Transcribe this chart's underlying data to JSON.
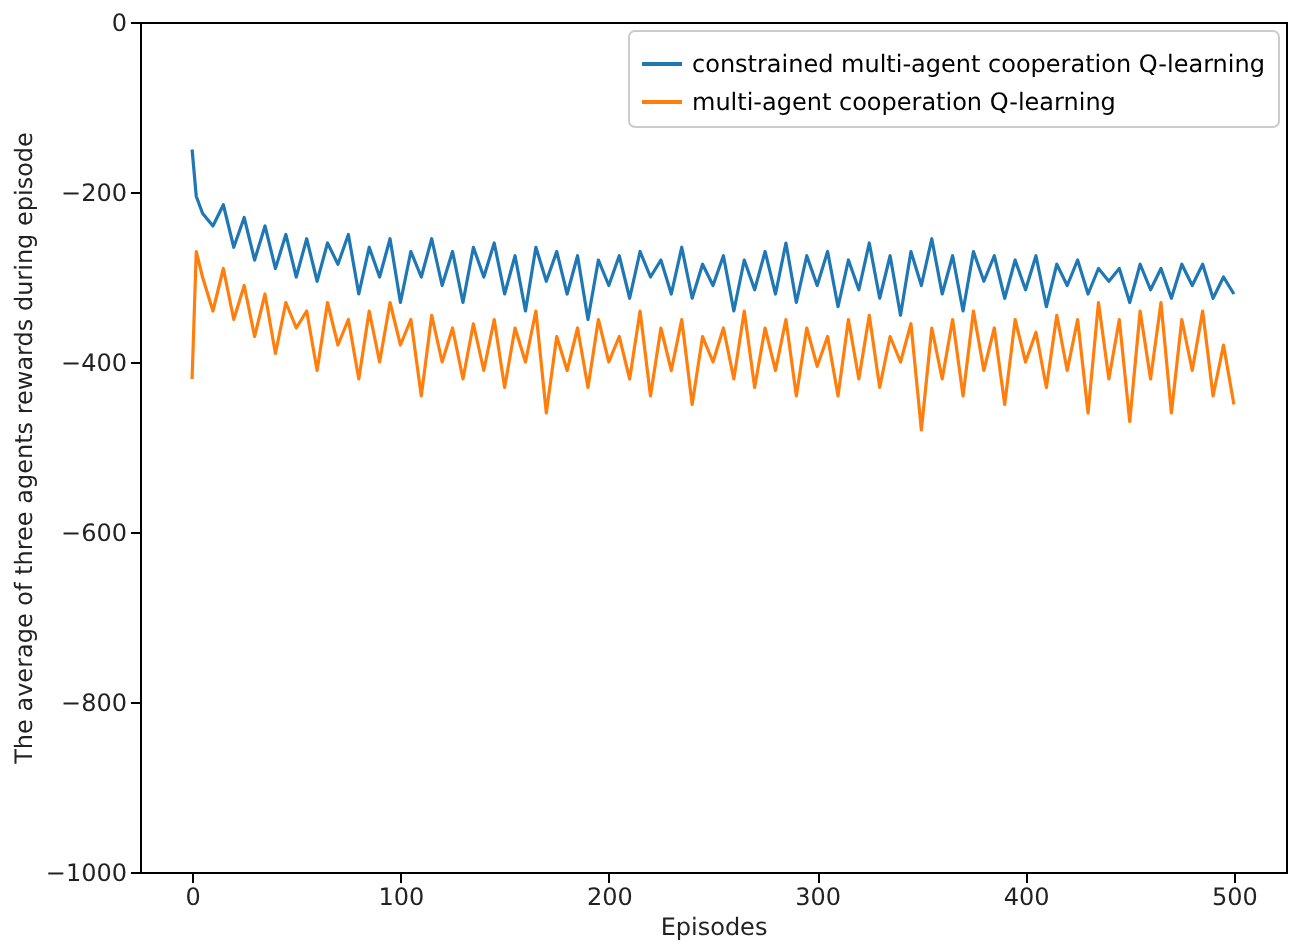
{
  "chart_data": {
    "type": "line",
    "xlabel": "Episodes",
    "ylabel": "The average of three agents rewards during episode",
    "xlim": [
      -25,
      525
    ],
    "xticks": [
      0,
      100,
      200,
      300,
      400,
      500
    ],
    "ylim": [
      -1000,
      0
    ],
    "yticks": [
      -1000,
      -800,
      -600,
      -400,
      -200,
      0
    ],
    "grid": false,
    "legend": "top right",
    "line_style": "solid",
    "marker": "none",
    "x": [
      0,
      2,
      5,
      10,
      15,
      20,
      25,
      30,
      35,
      40,
      45,
      50,
      55,
      60,
      65,
      70,
      75,
      80,
      85,
      90,
      95,
      100,
      105,
      110,
      115,
      120,
      125,
      130,
      135,
      140,
      145,
      150,
      155,
      160,
      165,
      170,
      175,
      180,
      185,
      190,
      195,
      200,
      205,
      210,
      215,
      220,
      225,
      230,
      235,
      240,
      245,
      250,
      255,
      260,
      265,
      270,
      275,
      280,
      285,
      290,
      295,
      300,
      305,
      310,
      315,
      320,
      325,
      330,
      335,
      340,
      345,
      350,
      355,
      360,
      365,
      370,
      375,
      380,
      385,
      390,
      395,
      400,
      405,
      410,
      415,
      420,
      425,
      430,
      435,
      440,
      445,
      450,
      455,
      460,
      465,
      470,
      475,
      480,
      485,
      490,
      495,
      500
    ],
    "series": [
      {
        "name": "constrained multi-agent cooperation Q-learning",
        "color": "#1f77b4",
        "values": [
          -150,
          -205,
          -225,
          -240,
          -215,
          -265,
          -230,
          -280,
          -240,
          -290,
          -250,
          -300,
          -255,
          -305,
          -260,
          -285,
          -250,
          -320,
          -265,
          -300,
          -255,
          -330,
          -270,
          -300,
          -255,
          -310,
          -270,
          -330,
          -265,
          -300,
          -260,
          -320,
          -275,
          -340,
          -265,
          -305,
          -270,
          -320,
          -275,
          -350,
          -280,
          -310,
          -275,
          -325,
          -270,
          -300,
          -280,
          -320,
          -265,
          -325,
          -285,
          -310,
          -275,
          -340,
          -280,
          -315,
          -270,
          -320,
          -260,
          -330,
          -275,
          -310,
          -270,
          -335,
          -280,
          -315,
          -260,
          -325,
          -275,
          -345,
          -270,
          -310,
          -255,
          -320,
          -275,
          -340,
          -270,
          -305,
          -275,
          -325,
          -280,
          -315,
          -275,
          -335,
          -285,
          -310,
          -280,
          -320,
          -290,
          -305,
          -290,
          -330,
          -285,
          -315,
          -290,
          -325,
          -285,
          -310,
          -285,
          -325,
          -300,
          -320
        ]
      },
      {
        "name": "multi-agent cooperation Q-learning",
        "color": "#ff7f0e",
        "values": [
          -420,
          -270,
          -300,
          -340,
          -290,
          -350,
          -310,
          -370,
          -320,
          -390,
          -330,
          -360,
          -340,
          -410,
          -330,
          -380,
          -350,
          -420,
          -340,
          -400,
          -330,
          -380,
          -350,
          -440,
          -345,
          -400,
          -360,
          -420,
          -355,
          -410,
          -350,
          -430,
          -360,
          -400,
          -340,
          -460,
          -370,
          -410,
          -360,
          -430,
          -350,
          -400,
          -370,
          -420,
          -340,
          -440,
          -360,
          -410,
          -350,
          -450,
          -370,
          -400,
          -360,
          -420,
          -340,
          -430,
          -360,
          -410,
          -350,
          -440,
          -360,
          -405,
          -370,
          -440,
          -350,
          -420,
          -345,
          -430,
          -370,
          -400,
          -355,
          -480,
          -360,
          -420,
          -350,
          -440,
          -340,
          -410,
          -360,
          -450,
          -350,
          -400,
          -365,
          -430,
          -345,
          -410,
          -350,
          -460,
          -330,
          -420,
          -350,
          -470,
          -340,
          -420,
          -330,
          -460,
          -350,
          -410,
          -340,
          -440,
          -380,
          -450
        ]
      }
    ]
  }
}
